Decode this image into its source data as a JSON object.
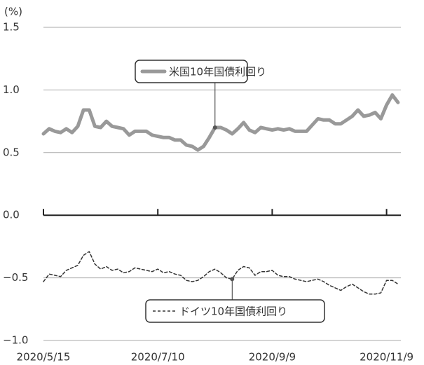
{
  "chart_data": {
    "type": "line",
    "y_label": "(%)",
    "categories": [
      "2020/5/15",
      null,
      null,
      null,
      null,
      null,
      null,
      null,
      null,
      null,
      null,
      null,
      null,
      null,
      null,
      null,
      null,
      null,
      null,
      null,
      "2020/7/10",
      null,
      null,
      null,
      null,
      null,
      null,
      null,
      null,
      null,
      null,
      null,
      null,
      null,
      null,
      null,
      null,
      null,
      null,
      null,
      "2020/9/9",
      null,
      null,
      null,
      null,
      null,
      null,
      null,
      null,
      null,
      null,
      null,
      null,
      null,
      null,
      null,
      null,
      null,
      null,
      null,
      "2020/11/9",
      null,
      null
    ],
    "series": [
      {
        "name": "米国10年国債利回り",
        "color": "#999999",
        "line_style": "solid",
        "values": [
          0.65,
          0.69,
          0.67,
          0.66,
          0.69,
          0.66,
          0.71,
          0.84,
          0.84,
          0.71,
          0.7,
          0.75,
          0.71,
          0.7,
          0.69,
          0.64,
          0.67,
          0.67,
          0.67,
          0.64,
          0.63,
          0.62,
          0.62,
          0.6,
          0.6,
          0.56,
          0.55,
          0.52,
          0.55,
          0.62,
          0.7,
          0.7,
          0.68,
          0.65,
          0.69,
          0.74,
          0.68,
          0.66,
          0.7,
          0.69,
          0.68,
          0.69,
          0.68,
          0.69,
          0.67,
          0.67,
          0.67,
          0.72,
          0.77,
          0.76,
          0.76,
          0.73,
          0.73,
          0.76,
          0.79,
          0.84,
          0.79,
          0.8,
          0.82,
          0.77,
          0.88,
          0.96,
          0.9
        ]
      },
      {
        "name": "ドイツ10年国債利回り",
        "color": "#333333",
        "line_style": "dashed",
        "values": [
          -0.53,
          -0.47,
          -0.48,
          -0.49,
          -0.44,
          -0.42,
          -0.4,
          -0.32,
          -0.29,
          -0.39,
          -0.43,
          -0.41,
          -0.44,
          -0.43,
          -0.46,
          -0.45,
          -0.42,
          -0.43,
          -0.44,
          -0.45,
          -0.43,
          -0.46,
          -0.45,
          -0.47,
          -0.48,
          -0.52,
          -0.53,
          -0.52,
          -0.49,
          -0.45,
          -0.43,
          -0.46,
          -0.5,
          -0.51,
          -0.44,
          -0.41,
          -0.42,
          -0.48,
          -0.45,
          -0.45,
          -0.44,
          -0.48,
          -0.49,
          -0.49,
          -0.51,
          -0.52,
          -0.53,
          -0.52,
          -0.51,
          -0.53,
          -0.56,
          -0.58,
          -0.6,
          -0.57,
          -0.55,
          -0.58,
          -0.61,
          -0.63,
          -0.63,
          -0.62,
          -0.52,
          -0.52,
          -0.55
        ]
      }
    ],
    "ylim": [
      -1.0,
      1.5
    ],
    "yticks": [
      {
        "value": -1.0,
        "label": "−1.0"
      },
      {
        "value": -0.5,
        "label": "−0.5"
      },
      {
        "value": 0.0,
        "label": "0.0"
      },
      0.5,
      {
        "value": 1.0,
        "label": "1.0"
      },
      1.5
    ],
    "grid": true
  }
}
